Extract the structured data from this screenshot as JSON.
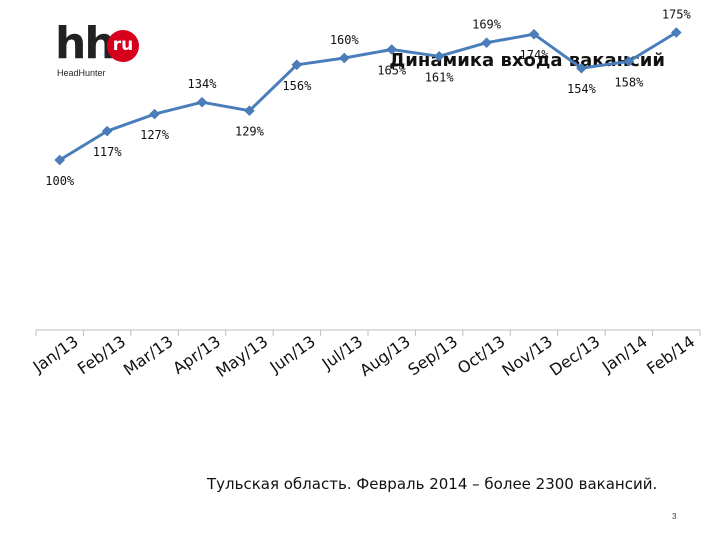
{
  "logo": {
    "hh": "hh",
    "ru": "ru",
    "brand": "HeadHunter"
  },
  "title": "Динамика входа вакансий",
  "chart_data": {
    "type": "line",
    "categories": [
      "Jan/13",
      "Feb/13",
      "Mar/13",
      "Apr/13",
      "May/13",
      "Jun/13",
      "Jul/13",
      "Aug/13",
      "Sep/13",
      "Oct/13",
      "Nov/13",
      "Dec/13",
      "Jan/14",
      "Feb/14"
    ],
    "series": [
      {
        "values": [
          100,
          117,
          127,
          134,
          129,
          156,
          160,
          165,
          161,
          169,
          174,
          154,
          158,
          175
        ]
      }
    ],
    "data_labels": [
      "100%",
      "117%",
      "127%",
      "134%",
      "129%",
      "156%",
      "160%",
      "165%",
      "161%",
      "169%",
      "174%",
      "154%",
      "158%",
      "175%"
    ],
    "ylim": [
      0,
      250
    ],
    "color": "#4a7ebb",
    "grid": false,
    "legend": "none"
  },
  "caption": "Тульская область. Февраль 2014 – более 2300 вакансий.",
  "page_number": "3"
}
